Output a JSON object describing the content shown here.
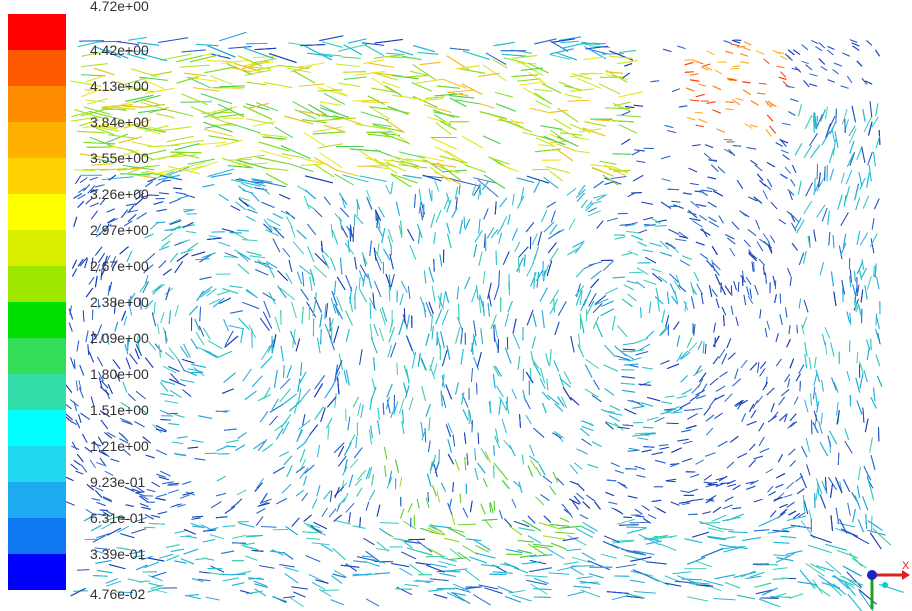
{
  "colorbar": {
    "labels": [
      "4.72e+00",
      "4.42e+00",
      "4.13e+00",
      "3.84e+00",
      "3.55e+00",
      "3.26e+00",
      "2.97e+00",
      "2.67e+00",
      "2.38e+00",
      "2.09e+00",
      "1.80e+00",
      "1.51e+00",
      "1.21e+00",
      "9.23e-01",
      "6.31e-01",
      "3.39e-01",
      "4.76e-02"
    ],
    "colors": [
      "#ff0000",
      "#ff5a00",
      "#ff8c00",
      "#ffb000",
      "#ffd200",
      "#ffff00",
      "#d8f000",
      "#9ee800",
      "#00e000",
      "#33dd55",
      "#33ddaa",
      "#00ffff",
      "#20d8f0",
      "#1eaaf0",
      "#0f78f0",
      "#0000ff"
    ]
  },
  "field": {
    "plot_region": "right of colorbar, full height",
    "hot_zones": [
      "upper band (yellow-green)",
      "top-right corner (red-orange)",
      "lower-middle (green)"
    ],
    "background_flow_color": "#22bcd8",
    "slow_flow_color": "#1a3cb8"
  },
  "axes_triad": {
    "x_color": "#e02020",
    "y_color": "#20a020",
    "z_color": "#2020c0",
    "x_letter": "X"
  }
}
